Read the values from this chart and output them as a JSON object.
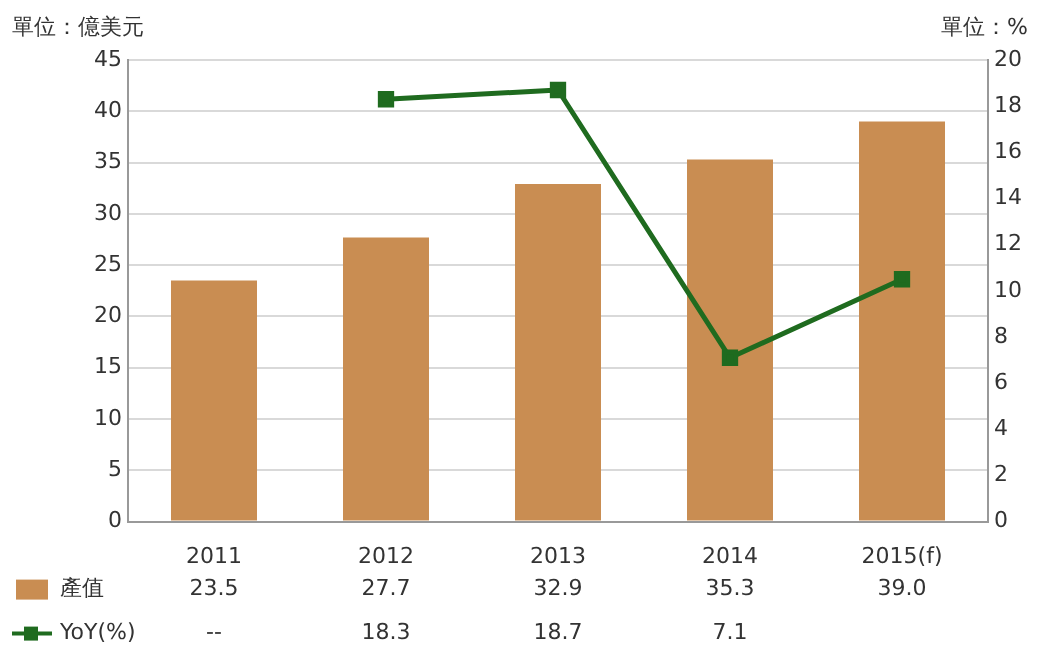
{
  "chart_data": {
    "type": "bar",
    "ylabel": "單位：億美元",
    "y2label": "單位：%",
    "categories": [
      "2011",
      "2012",
      "2013",
      "2014",
      "2015(f)"
    ],
    "series": [
      {
        "name": "產值",
        "color": "#c98d52",
        "values": [
          23.5,
          27.7,
          32.9,
          35.3,
          39.0
        ],
        "value_labels": [
          "23.5",
          "27.7",
          "32.9",
          "35.3",
          "39.0"
        ]
      },
      {
        "name": "YoY(%)",
        "type": "line",
        "axis": "y2",
        "color": "#1f6b1f",
        "marker": "square",
        "values": [
          null,
          18.3,
          18.7,
          7.1,
          10.5
        ],
        "value_labels": [
          "--",
          "18.3",
          "18.7",
          "7.1",
          null
        ]
      }
    ],
    "ylim": [
      0,
      45
    ],
    "yticks": [
      0,
      5,
      10,
      15,
      20,
      25,
      30,
      35,
      40,
      45
    ],
    "y2lim": [
      0,
      20
    ],
    "y2ticks": [
      0,
      2,
      4,
      6,
      8,
      10,
      12,
      14,
      16,
      18,
      20
    ],
    "grid": "y",
    "legend": "bottom"
  }
}
